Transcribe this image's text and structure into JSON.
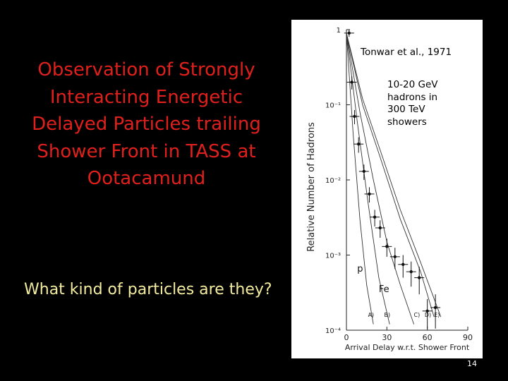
{
  "slide": {
    "title": "Observation of Strongly Interacting Energetic Delayed Particles trailing Shower Front in TASS at Ootacamund",
    "question": "What kind of particles are they?",
    "page_number": "14",
    "colors": {
      "background": "#000000",
      "title": "#e0201c",
      "question": "#f3ec9e"
    }
  },
  "chart_data": {
    "type": "line",
    "title": "",
    "source_note": "Tonwar et al., 1971",
    "annotation": "10-20 GeV hadrons in 300 TeV showers",
    "xlabel": "Arrival Delay w.r.t. Shower Front",
    "ylabel": "Relative Number of Hadrons",
    "x_ticks": [
      "0",
      "30",
      "60",
      "90"
    ],
    "y_ticks": [
      "1",
      "10⁻¹",
      "10⁻²",
      "10⁻³",
      "10⁻⁴"
    ],
    "xlim": [
      0,
      90
    ],
    "ylim": [
      0.0001,
      1
    ],
    "y_scale": "log",
    "curve_labels": [
      {
        "text": "p",
        "x": 8,
        "y": 0.0006
      },
      {
        "text": "Fe",
        "x": 24,
        "y": 0.00032
      },
      {
        "text": "A)",
        "x": 16,
        "y": 0.00015
      },
      {
        "text": "B)",
        "x": 28,
        "y": 0.00015
      },
      {
        "text": "C)",
        "x": 50,
        "y": 0.00015
      },
      {
        "text": "D)",
        "x": 58,
        "y": 0.00015
      },
      {
        "text": "E)",
        "x": 65,
        "y": 0.00015
      }
    ],
    "series": [
      {
        "x": [
          0,
          5,
          10,
          15,
          20
        ],
        "values": [
          0.9,
          0.04,
          0.003,
          0.0004,
          0.00012
        ]
      },
      {
        "x": [
          0,
          8,
          16,
          24,
          32
        ],
        "values": [
          0.9,
          0.06,
          0.005,
          0.0005,
          0.00012
        ]
      },
      {
        "x": [
          0,
          10,
          20,
          30,
          40,
          50
        ],
        "values": [
          0.9,
          0.08,
          0.01,
          0.0015,
          0.0004,
          0.00012
        ]
      },
      {
        "x": [
          0,
          12,
          25,
          40,
          55,
          65
        ],
        "values": [
          0.9,
          0.1,
          0.02,
          0.003,
          0.0006,
          0.00015
        ]
      },
      {
        "x": [
          0,
          12,
          25,
          40,
          55,
          70
        ],
        "values": [
          0.9,
          0.12,
          0.025,
          0.004,
          0.0008,
          0.00015
        ]
      }
    ],
    "points": {
      "x": [
        2,
        4,
        6,
        9,
        13,
        17,
        21,
        25,
        30,
        36,
        42,
        48,
        54,
        60,
        66
      ],
      "values": [
        0.9,
        0.2,
        0.07,
        0.03,
        0.013,
        0.0065,
        0.0032,
        0.0023,
        0.0013,
        0.00095,
        0.00075,
        0.0006,
        0.0005,
        0.00018,
        0.0002
      ],
      "errors": [
        0.1,
        0.04,
        0.015,
        0.007,
        0.003,
        0.0015,
        0.0008,
        0.0006,
        0.00035,
        0.0003,
        0.00025,
        0.00022,
        0.0002,
        8e-05,
        0.0001
      ]
    }
  }
}
